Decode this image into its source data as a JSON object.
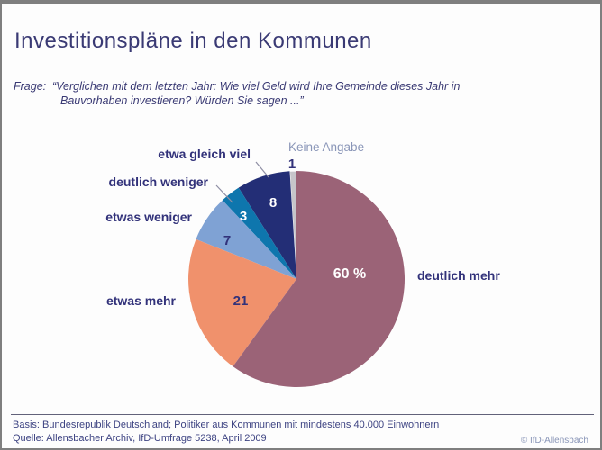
{
  "title": "Investitionspläne in den Kommunen",
  "question": {
    "label": "Frage:",
    "lines": [
      "“Verglichen mit dem letzten Jahr: Wie viel Geld wird Ihre Gemeinde dieses Jahr in",
      "Bauvorhaben investieren? Würden Sie sagen ...”"
    ]
  },
  "chart_data": {
    "type": "pie",
    "title": "Investitionspläne in den Kommunen",
    "unit": "percent",
    "total": 100,
    "start_angle_deg": 0,
    "direction": "clockwise",
    "legend_position": "around-pie",
    "slices": [
      {
        "id": "deutlich-mehr",
        "label": "deutlich mehr",
        "value": 60,
        "display": "60 %",
        "color": "#9b6377"
      },
      {
        "id": "etwas-mehr",
        "label": "etwas mehr",
        "value": 21,
        "display": "21",
        "color": "#f0916c"
      },
      {
        "id": "etwas-weniger",
        "label": "etwas weniger",
        "value": 7,
        "display": "7",
        "color": "#7fa2d4"
      },
      {
        "id": "deutlich-weniger",
        "label": "deutlich weniger",
        "value": 3,
        "display": "3",
        "color": "#0e76ad"
      },
      {
        "id": "etwa-gleich-viel",
        "label": "etwa gleich viel",
        "value": 8,
        "display": "8",
        "color": "#232e76"
      },
      {
        "id": "keine-angabe",
        "label": "Keine Angabe",
        "value": 1,
        "display": "1",
        "color": "#c6c5ca",
        "stroke": "#ffffff"
      }
    ]
  },
  "footer": {
    "basis": "Basis: Bundesrepublik Deutschland; Politiker aus Kommunen mit mindestens 40.000 Einwohnern",
    "quelle": "Quelle: Allensbacher Archiv, IfD-Umfrage 5238, April 2009",
    "copyright": "© IfD-Allensbach"
  },
  "colors": {
    "accent_navy": "#32327a",
    "muted_blue": "#8a96b8"
  }
}
